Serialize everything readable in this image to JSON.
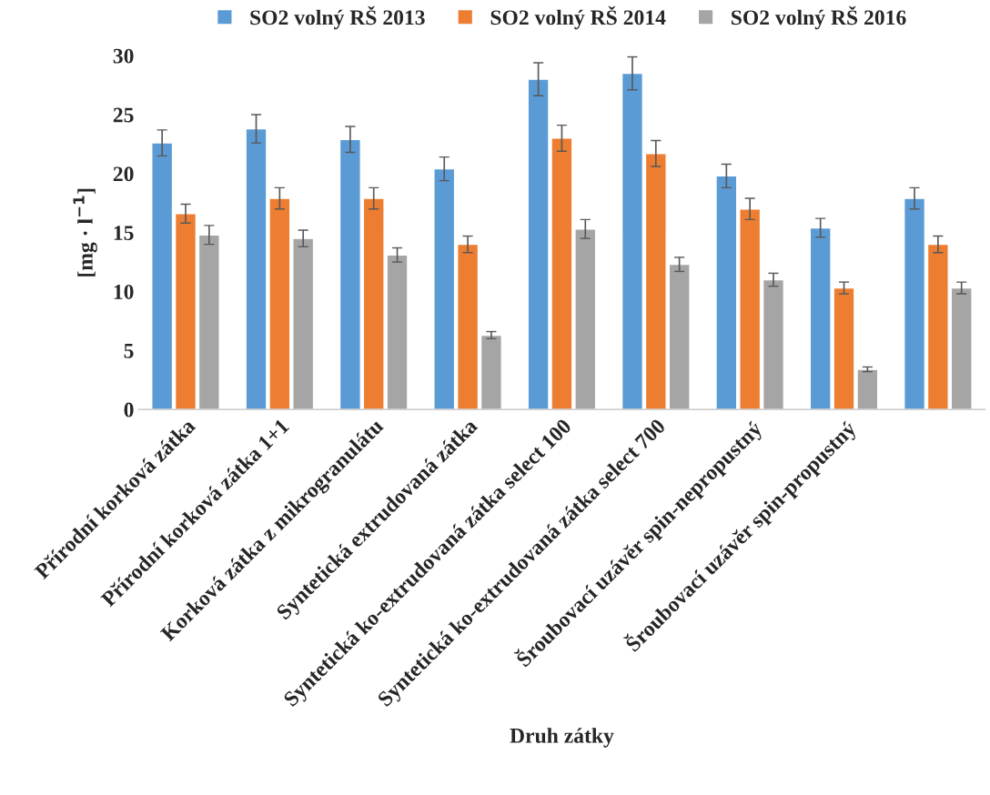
{
  "chart_data": {
    "type": "bar",
    "xlabel": "Druh zátky",
    "ylabel": "[mg · l$^{−1}$]",
    "categories": [
      "Přírodní korková zátka",
      "Přírodní korková zátka 1+1",
      "Korková zátka z mikrogranulátu",
      "Syntetická extrudovaná zátka",
      "Syntetická ko-extrudovaná zátka select 100",
      "Syntetická ko-extrudovaná zátka select 700",
      "Šroubovací uzávěr spin-nepropustný",
      "Šroubovací uzávěr spin-propustný",
      null
    ],
    "series": [
      {
        "name": "SO2 volný RŠ 2013",
        "color": "#5b9bd5",
        "values": [
          22.6,
          23.8,
          22.9,
          20.4,
          28.0,
          28.5,
          19.8,
          15.4,
          17.9
        ],
        "errors": [
          1.1,
          1.2,
          1.1,
          1.0,
          1.4,
          1.4,
          1.0,
          0.8,
          0.9
        ]
      },
      {
        "name": "SO2 volný RŠ 2014",
        "color": "#ed7d31",
        "values": [
          16.6,
          17.9,
          17.9,
          14.0,
          23.0,
          21.7,
          17.0,
          10.3,
          14.0
        ],
        "errors": [
          0.8,
          0.9,
          0.9,
          0.7,
          1.1,
          1.1,
          0.9,
          0.5,
          0.7
        ]
      },
      {
        "name": "SO2 volný RŠ 2016",
        "color": "#a5a5a5",
        "values": [
          14.8,
          14.5,
          13.1,
          6.3,
          15.3,
          12.3,
          11.0,
          3.4,
          10.3
        ],
        "errors": [
          0.8,
          0.7,
          0.6,
          0.3,
          0.8,
          0.6,
          0.55,
          0.2,
          0.5
        ]
      }
    ],
    "ylim": [
      0,
      30
    ],
    "yticks": [
      0,
      5,
      10,
      15,
      20,
      25,
      30
    ],
    "grid": false,
    "legend": "top"
  }
}
